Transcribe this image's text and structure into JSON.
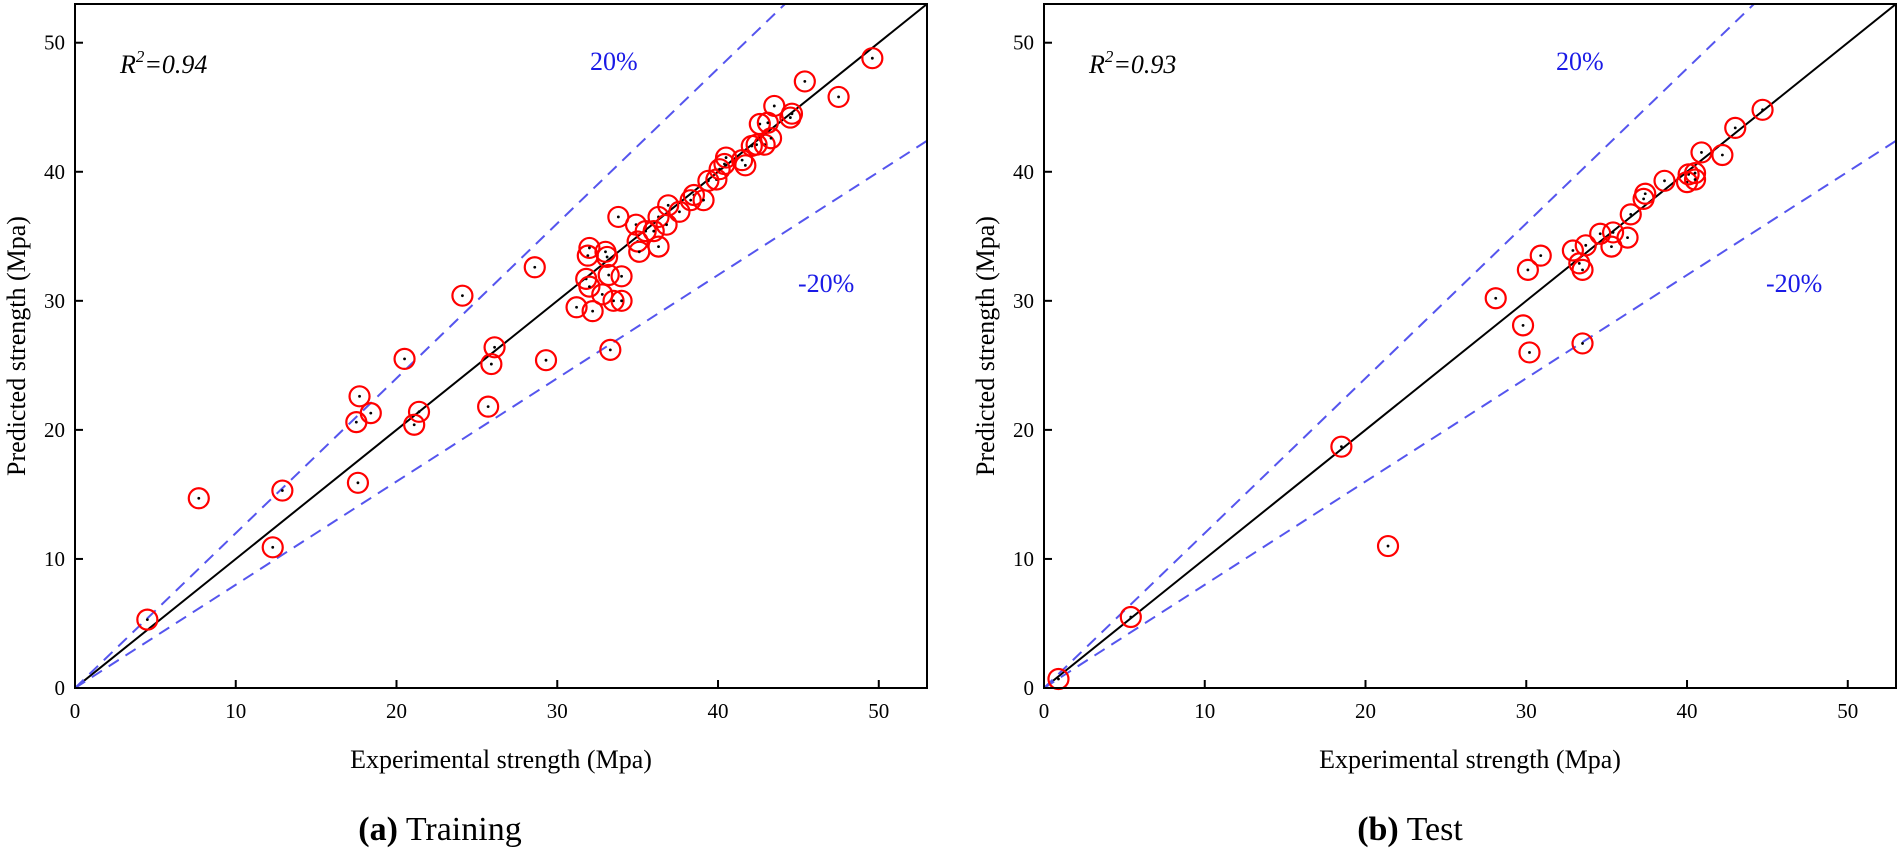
{
  "chart_data": [
    {
      "type": "scatter",
      "caption_letter": "(a)",
      "caption_text": "Training",
      "xlabel": "Experimental strength (Mpa)",
      "ylabel": "Predicted strength (Mpa)",
      "r2_label": "R",
      "r2_sup": "2",
      "r2_value": "=0.94",
      "xlim": [
        0,
        53
      ],
      "ylim": [
        0,
        53
      ],
      "xticks": [
        0,
        10,
        20,
        30,
        40,
        50
      ],
      "yticks": [
        0,
        10,
        20,
        30,
        40,
        50
      ],
      "reference_lines": [
        {
          "label": "",
          "slope": 1.0,
          "style": "solid",
          "color": "#000000"
        },
        {
          "label": "20%",
          "slope": 1.2,
          "style": "dashed",
          "color": "#5555ee"
        },
        {
          "label": "-20%",
          "slope": 0.8,
          "style": "dashed",
          "color": "#5555ee"
        }
      ],
      "marker_color": "#ff0000",
      "points": [
        [
          4.5,
          5.3
        ],
        [
          7.7,
          14.7
        ],
        [
          12.3,
          10.9
        ],
        [
          12.9,
          15.3
        ],
        [
          17.5,
          20.6
        ],
        [
          17.6,
          15.9
        ],
        [
          17.7,
          22.6
        ],
        [
          18.4,
          21.3
        ],
        [
          20.5,
          25.5
        ],
        [
          21.1,
          20.4
        ],
        [
          21.4,
          21.4
        ],
        [
          24.1,
          30.4
        ],
        [
          25.7,
          21.8
        ],
        [
          25.9,
          25.1
        ],
        [
          26.1,
          26.4
        ],
        [
          28.6,
          32.6
        ],
        [
          29.3,
          25.4
        ],
        [
          31.2,
          29.5
        ],
        [
          31.8,
          31.7
        ],
        [
          31.9,
          33.5
        ],
        [
          32.0,
          34.1
        ],
        [
          32.0,
          31.1
        ],
        [
          32.2,
          29.2
        ],
        [
          32.8,
          30.5
        ],
        [
          33.0,
          33.8
        ],
        [
          33.1,
          33.4
        ],
        [
          33.2,
          32.0
        ],
        [
          33.3,
          26.2
        ],
        [
          33.5,
          30.0
        ],
        [
          33.8,
          36.5
        ],
        [
          34.0,
          30.0
        ],
        [
          34.0,
          31.9
        ],
        [
          34.9,
          35.9
        ],
        [
          35.0,
          34.6
        ],
        [
          35.1,
          33.8
        ],
        [
          35.5,
          35.4
        ],
        [
          36.0,
          35.4
        ],
        [
          36.3,
          34.2
        ],
        [
          36.3,
          36.5
        ],
        [
          36.8,
          35.9
        ],
        [
          36.9,
          37.4
        ],
        [
          37.6,
          36.9
        ],
        [
          38.3,
          37.8
        ],
        [
          38.5,
          38.2
        ],
        [
          39.1,
          37.8
        ],
        [
          39.4,
          39.3
        ],
        [
          39.9,
          39.4
        ],
        [
          40.1,
          40.2
        ],
        [
          40.4,
          40.6
        ],
        [
          40.5,
          41.1
        ],
        [
          41.5,
          40.9
        ],
        [
          41.7,
          40.5
        ],
        [
          42.1,
          42.0
        ],
        [
          42.4,
          42.1
        ],
        [
          42.6,
          43.7
        ],
        [
          42.9,
          42.1
        ],
        [
          43.1,
          43.8
        ],
        [
          43.3,
          42.6
        ],
        [
          43.5,
          45.1
        ],
        [
          44.5,
          44.2
        ],
        [
          44.6,
          44.5
        ],
        [
          45.4,
          47.0
        ],
        [
          47.5,
          45.8
        ],
        [
          49.6,
          48.8
        ]
      ]
    },
    {
      "type": "scatter",
      "caption_letter": "(b)",
      "caption_text": "Test",
      "xlabel": "Experimental strength (Mpa)",
      "ylabel": "Predicted strength (Mpa)",
      "r2_label": "R",
      "r2_sup": "2",
      "r2_value": "=0.93",
      "xlim": [
        0,
        53
      ],
      "ylim": [
        0,
        53
      ],
      "xticks": [
        0,
        10,
        20,
        30,
        40,
        50
      ],
      "yticks": [
        0,
        10,
        20,
        30,
        40,
        50
      ],
      "reference_lines": [
        {
          "label": "",
          "slope": 1.0,
          "style": "solid",
          "color": "#000000"
        },
        {
          "label": "20%",
          "slope": 1.2,
          "style": "dashed",
          "color": "#5555ee"
        },
        {
          "label": "-20%",
          "slope": 0.8,
          "style": "dashed",
          "color": "#5555ee"
        }
      ],
      "marker_color": "#ff0000",
      "points": [
        [
          0.9,
          0.7
        ],
        [
          5.4,
          5.5
        ],
        [
          18.5,
          18.7
        ],
        [
          21.4,
          11.0
        ],
        [
          28.1,
          30.2
        ],
        [
          29.8,
          28.1
        ],
        [
          30.1,
          32.4
        ],
        [
          30.2,
          26.0
        ],
        [
          30.9,
          33.5
        ],
        [
          32.9,
          33.9
        ],
        [
          33.3,
          32.9
        ],
        [
          33.5,
          32.4
        ],
        [
          33.5,
          26.7
        ],
        [
          33.7,
          34.3
        ],
        [
          34.6,
          35.2
        ],
        [
          35.3,
          34.2
        ],
        [
          35.4,
          35.3
        ],
        [
          36.3,
          34.9
        ],
        [
          36.5,
          36.7
        ],
        [
          37.3,
          37.9
        ],
        [
          37.4,
          38.3
        ],
        [
          38.6,
          39.3
        ],
        [
          40.0,
          39.2
        ],
        [
          40.1,
          39.8
        ],
        [
          40.5,
          39.4
        ],
        [
          40.5,
          39.9
        ],
        [
          40.9,
          41.5
        ],
        [
          42.2,
          41.3
        ],
        [
          43.0,
          43.4
        ],
        [
          44.7,
          44.8
        ]
      ]
    }
  ]
}
